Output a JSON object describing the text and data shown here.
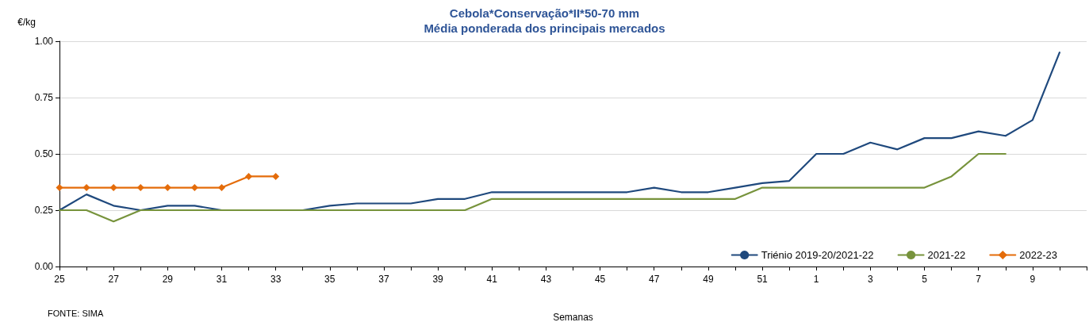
{
  "chart_data": {
    "type": "line",
    "title": "Cebola*Conservação*II*50-70 mm",
    "subtitle": "Média ponderada dos principais mercados",
    "xlabel": "Semanas",
    "ylabel": "€/kg",
    "annotations": [
      "FONTE: SIMA"
    ],
    "categories": [
      "25",
      null,
      "27",
      null,
      "29",
      null,
      "31",
      null,
      "33",
      null,
      "35",
      null,
      "37",
      null,
      "39",
      null,
      "41",
      null,
      "43",
      null,
      "45",
      null,
      "47",
      null,
      "49",
      null,
      "51",
      null,
      "1",
      null,
      "3",
      null,
      "5",
      null,
      "7",
      null,
      "9",
      null,
      null
    ],
    "series": [
      {
        "name": "Triénio 2019-20/2021-22",
        "color": "#1f497d",
        "marker": "none",
        "values": [
          0.25,
          0.32,
          0.27,
          0.25,
          0.27,
          0.27,
          0.25,
          0.25,
          0.25,
          0.25,
          0.27,
          0.28,
          0.28,
          0.28,
          0.3,
          0.3,
          0.33,
          0.33,
          0.33,
          0.33,
          0.33,
          0.33,
          0.35,
          0.33,
          0.33,
          0.35,
          0.37,
          0.38,
          0.5,
          0.5,
          0.55,
          0.52,
          0.57,
          0.57,
          0.6,
          0.58,
          0.65,
          0.95,
          null
        ]
      },
      {
        "name": "2021-22",
        "color": "#77933c",
        "marker": "none",
        "values": [
          0.25,
          0.25,
          0.2,
          0.25,
          0.25,
          0.25,
          0.25,
          0.25,
          0.25,
          0.25,
          0.25,
          0.25,
          0.25,
          0.25,
          0.25,
          0.25,
          0.3,
          0.3,
          0.3,
          0.3,
          0.3,
          0.3,
          0.3,
          0.3,
          0.3,
          0.3,
          0.35,
          0.35,
          0.35,
          0.35,
          0.35,
          0.35,
          0.35,
          0.4,
          0.5,
          0.5,
          null,
          null,
          null
        ]
      },
      {
        "name": "2022-23",
        "color": "#e46c0a",
        "marker": "diamond",
        "values": [
          0.35,
          0.35,
          0.35,
          0.35,
          0.35,
          0.35,
          0.35,
          0.4,
          0.4,
          null,
          null,
          null,
          null,
          null,
          null,
          null,
          null,
          null,
          null,
          null,
          null,
          null,
          null,
          null,
          null,
          null,
          null,
          null,
          null,
          null,
          null,
          null,
          null,
          null,
          null,
          null,
          null,
          null,
          null
        ]
      }
    ],
    "ylim": [
      0,
      1
    ],
    "yticks": [
      {
        "value": 0,
        "label": "0.00"
      },
      {
        "value": 0.25,
        "label": "0.25"
      },
      {
        "value": 0.5,
        "label": "0.50"
      },
      {
        "value": 0.75,
        "label": "0.75"
      },
      {
        "value": 1,
        "label": "1.00"
      }
    ],
    "grid": "y",
    "legend": "bottom right",
    "line_style": "solid"
  }
}
